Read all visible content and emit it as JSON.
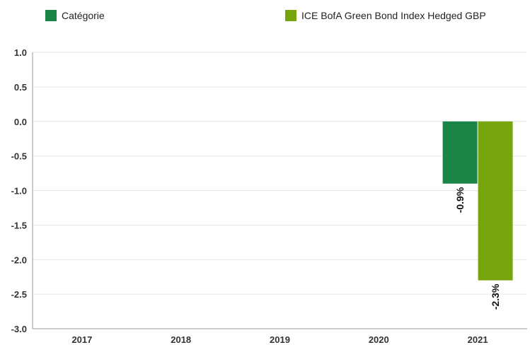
{
  "colors": {
    "series1": "#1b8447",
    "series2": "#78a40e",
    "grid": "#e6e6e6",
    "axis": "#999999"
  },
  "chart_data": {
    "type": "bar",
    "categories": [
      "2017",
      "2018",
      "2019",
      "2020",
      "2021"
    ],
    "series": [
      {
        "name": "Catégorie",
        "values": [
          null,
          null,
          null,
          null,
          -0.9
        ],
        "labels": [
          "",
          "",
          "",
          "",
          "-0.9%"
        ]
      },
      {
        "name": "ICE BofA Green Bond Index Hedged GBP",
        "values": [
          null,
          null,
          null,
          null,
          -2.3
        ],
        "labels": [
          "",
          "",
          "",
          "",
          "-2.3%"
        ]
      }
    ],
    "ylim": [
      -3.0,
      1.0
    ],
    "yticks": [
      "1.0",
      "0.5",
      "0.0",
      "-0.5",
      "-1.0",
      "-1.5",
      "-2.0",
      "-2.5",
      "-3.0"
    ],
    "grid": true,
    "legend": "top"
  }
}
